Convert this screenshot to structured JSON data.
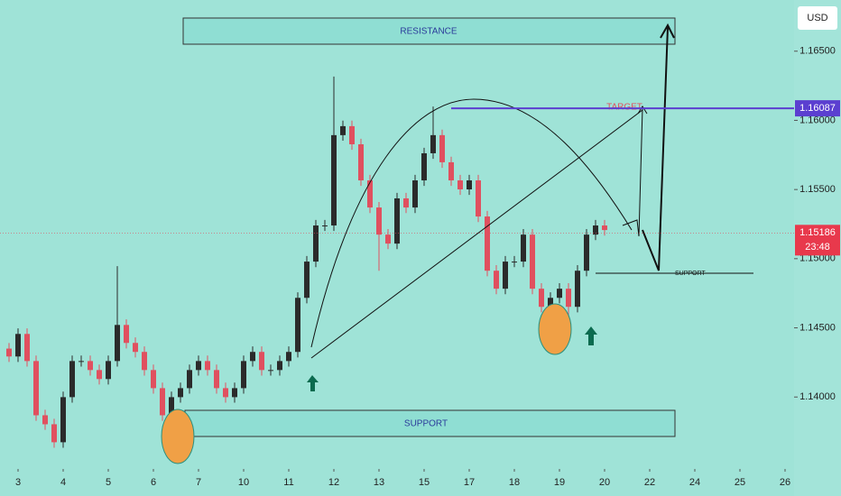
{
  "chart_data": {
    "type": "candlestick",
    "currency": "USD",
    "up_color": "#2b2b2b",
    "down_color": "#e0505f",
    "x": [
      -0.2,
      0,
      0.2,
      0.4,
      0.6,
      0.8,
      1,
      1.2,
      1.4,
      1.6,
      1.8,
      2,
      2.2,
      2.4,
      2.6,
      2.8,
      3,
      3.2,
      3.4,
      3.6,
      3.8,
      4,
      4.2,
      4.4,
      4.6,
      4.8,
      5,
      5.2,
      5.4,
      5.6,
      5.8,
      6,
      6.2,
      6.4,
      6.6,
      6.8,
      7,
      7.2,
      7.4,
      7.6,
      7.8,
      8,
      8.2,
      8.4,
      8.6,
      8.8,
      9,
      9.2,
      9.4,
      9.6,
      9.8,
      10,
      10.2,
      10.4,
      10.6,
      10.8,
      11,
      11.2,
      11.4,
      11.6,
      11.8,
      12,
      12.2,
      12.4,
      12.6,
      12.8,
      13
    ],
    "open": [
      1.1435,
      1.14293,
      1.14456,
      1.1426,
      1.13868,
      1.13803,
      1.13673,
      1.13999,
      1.1426,
      1.1426,
      1.14195,
      1.1413,
      1.1426,
      1.14521,
      1.14391,
      1.14326,
      1.14195,
      1.14064,
      1.13868,
      1.13999,
      1.14064,
      1.14195,
      1.1426,
      1.14195,
      1.14064,
      1.13999,
      1.14064,
      1.1426,
      1.14326,
      1.14195,
      1.14195,
      1.1426,
      1.14326,
      1.14717,
      1.14979,
      1.1524,
      1.1524,
      1.15893,
      1.15958,
      1.15827,
      1.15566,
      1.1537,
      1.15174,
      1.15109,
      1.15436,
      1.1537,
      1.15566,
      1.15762,
      1.15893,
      1.15697,
      1.15566,
      1.15501,
      1.15566,
      1.15305,
      1.14913,
      1.14783,
      1.14979,
      1.14979,
      1.15174,
      1.14783,
      1.14652,
      1.14717,
      1.14783,
      1.14652,
      1.14913,
      1.15174,
      1.1524
    ],
    "high": [
      1.1439,
      1.14496,
      1.14496,
      1.143,
      1.13908,
      1.13843,
      1.14039,
      1.143,
      1.143,
      1.143,
      1.14235,
      1.143,
      1.14946,
      1.14561,
      1.14431,
      1.14366,
      1.14235,
      1.14104,
      1.14039,
      1.14104,
      1.14235,
      1.143,
      1.143,
      1.14235,
      1.14104,
      1.14104,
      1.143,
      1.14366,
      1.14366,
      1.14235,
      1.143,
      1.14366,
      1.14757,
      1.15019,
      1.1528,
      1.1528,
      1.16317,
      1.15998,
      1.15998,
      1.15867,
      1.15606,
      1.1541,
      1.15214,
      1.15476,
      1.15476,
      1.15606,
      1.15802,
      1.161,
      1.15933,
      1.15737,
      1.15606,
      1.15606,
      1.15606,
      1.15345,
      1.14953,
      1.15019,
      1.15019,
      1.15214,
      1.15214,
      1.14823,
      1.14757,
      1.14823,
      1.14823,
      1.14953,
      1.15214,
      1.1528,
      1.1528
    ],
    "low": [
      1.14253,
      1.14253,
      1.1422,
      1.13828,
      1.13763,
      1.13633,
      1.13633,
      1.13959,
      1.1422,
      1.14155,
      1.1409,
      1.1409,
      1.1422,
      1.14351,
      1.14286,
      1.14155,
      1.14024,
      1.13828,
      1.13828,
      1.13959,
      1.14024,
      1.14155,
      1.14155,
      1.14024,
      1.13959,
      1.13959,
      1.14024,
      1.1422,
      1.14155,
      1.14155,
      1.14155,
      1.1422,
      1.14286,
      1.14677,
      1.14939,
      1.152,
      1.152,
      1.15853,
      1.15787,
      1.15526,
      1.1533,
      1.14913,
      1.15069,
      1.15069,
      1.1533,
      1.1533,
      1.15526,
      1.15722,
      1.15657,
      1.15526,
      1.15461,
      1.15461,
      1.15265,
      1.14873,
      1.14743,
      1.14743,
      1.14939,
      1.14939,
      1.14743,
      1.14612,
      1.14521,
      1.14677,
      1.14554,
      1.14612,
      1.14873,
      1.15134,
      1.15167
    ],
    "close": [
      1.14293,
      1.14456,
      1.1426,
      1.13868,
      1.13803,
      1.13673,
      1.13999,
      1.1426,
      1.1426,
      1.14195,
      1.1413,
      1.1426,
      1.14521,
      1.14391,
      1.14326,
      1.14195,
      1.14064,
      1.13868,
      1.13999,
      1.14064,
      1.14195,
      1.1426,
      1.14195,
      1.14064,
      1.13999,
      1.14064,
      1.1426,
      1.14326,
      1.14195,
      1.14195,
      1.1426,
      1.14326,
      1.14717,
      1.14979,
      1.1524,
      1.1524,
      1.15893,
      1.15958,
      1.15827,
      1.15566,
      1.1537,
      1.15174,
      1.15109,
      1.15436,
      1.1537,
      1.15566,
      1.15762,
      1.15893,
      1.15697,
      1.15566,
      1.15501,
      1.15566,
      1.15305,
      1.14913,
      1.14783,
      1.14979,
      1.14979,
      1.15174,
      1.14783,
      1.14652,
      1.14717,
      1.14783,
      1.14652,
      1.14913,
      1.15174,
      1.1524,
      1.15207
    ],
    "xlim": [
      -0.4,
      17.2
    ],
    "xticks": [
      {
        "value": 0,
        "label": "3"
      },
      {
        "value": 1,
        "label": "4"
      },
      {
        "value": 2,
        "label": "5"
      },
      {
        "value": 3,
        "label": "6"
      },
      {
        "value": 4,
        "label": "7"
      },
      {
        "value": 5,
        "label": "10"
      },
      {
        "value": 6,
        "label": "11"
      },
      {
        "value": 7,
        "label": "12"
      },
      {
        "value": 8,
        "label": "13"
      },
      {
        "value": 9,
        "label": "15"
      },
      {
        "value": 10,
        "label": "17"
      },
      {
        "value": 11,
        "label": "18"
      },
      {
        "value": 12,
        "label": "19"
      },
      {
        "value": 13,
        "label": "20"
      },
      {
        "value": 14,
        "label": "22"
      },
      {
        "value": 15,
        "label": "24"
      },
      {
        "value": 16,
        "label": "25"
      },
      {
        "value": 17,
        "label": "26"
      }
    ],
    "ylim": [
      1.1348,
      1.1687
    ],
    "yticks": [
      {
        "value": 1.165,
        "label": "1.16500"
      },
      {
        "value": 1.16,
        "label": "1.16000"
      },
      {
        "value": 1.155,
        "label": "1.15500"
      },
      {
        "value": 1.15,
        "label": "1.15000"
      },
      {
        "value": 1.145,
        "label": "1.14500"
      },
      {
        "value": 1.14,
        "label": "1.14000"
      }
    ],
    "last_price": 1.15186,
    "countdown": "23:48",
    "target_price": 1.16087,
    "annotations": {
      "resistance": "RESISTANCE",
      "support": "SUPPORT",
      "target": "TARGET",
      "support_level": "SUPPORT"
    }
  }
}
